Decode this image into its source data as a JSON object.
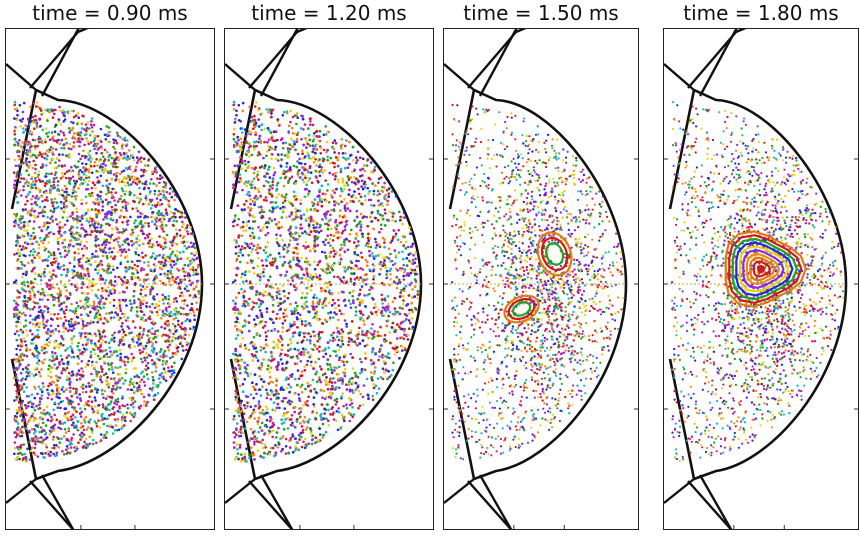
{
  "panels": [
    {
      "title": "time = 0.90 ms",
      "state": "scattered"
    },
    {
      "title": "time = 1.20 ms",
      "state": "scattered"
    },
    {
      "title": "time = 1.50 ms",
      "state": "double-island"
    },
    {
      "title": "time = 1.80 ms",
      "state": "single-island"
    }
  ],
  "colors": {
    "dots": [
      "#1f2bd6",
      "#d11a1a",
      "#22a022",
      "#e6d21a",
      "#8a2be2",
      "#f08a1a",
      "#1ab6c9",
      "#c21fa6"
    ],
    "island_rings": [
      "#e07a10",
      "#d11a1a",
      "#22a022",
      "#1f2bd6",
      "#e6d21a",
      "#8a2be2",
      "#f08a1a"
    ],
    "wall": "#111111"
  }
}
